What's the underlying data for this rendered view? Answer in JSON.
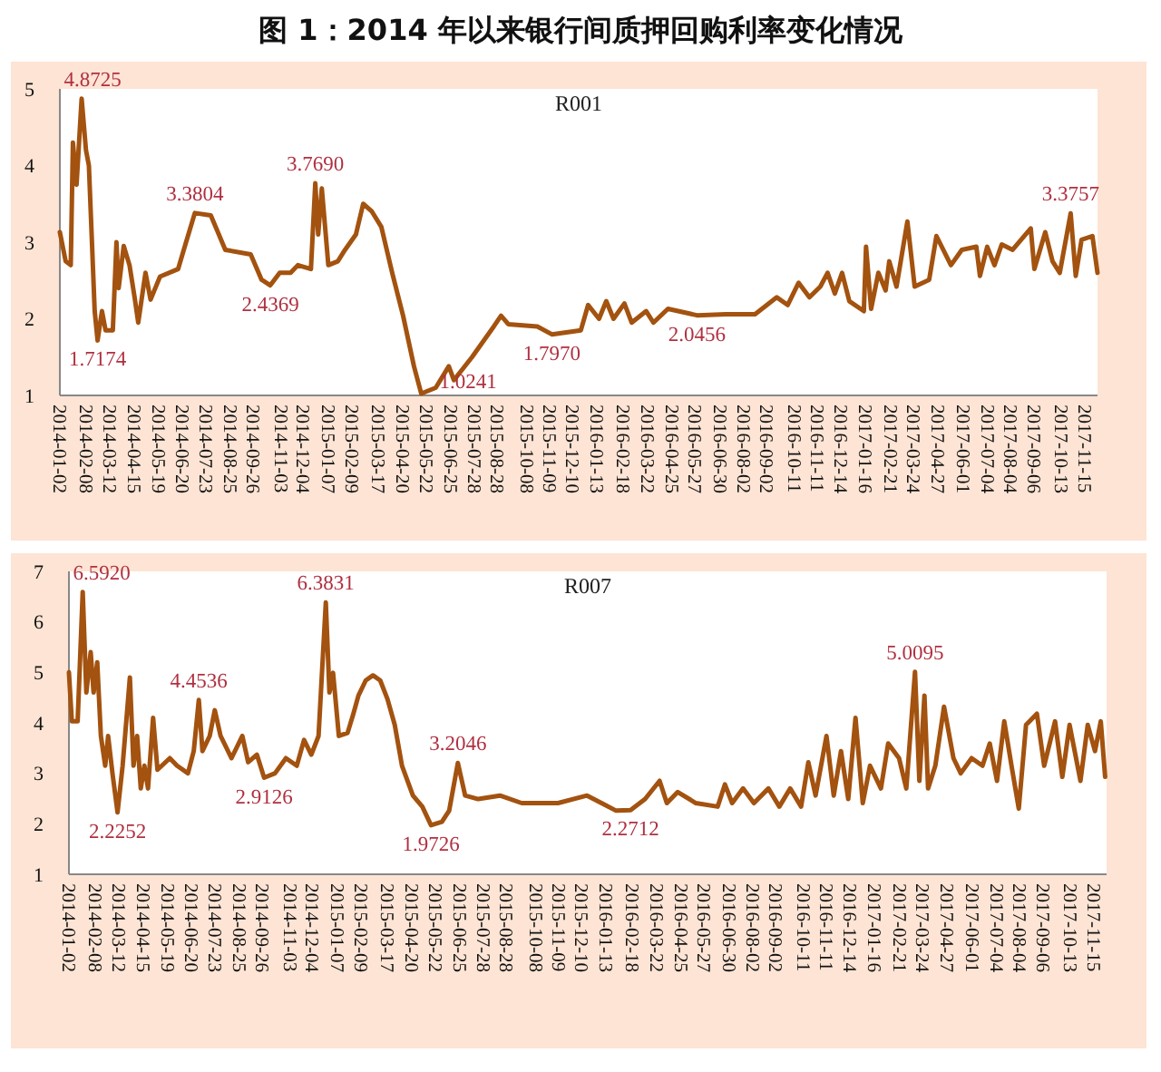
{
  "chart_data": [
    {
      "type": "line",
      "title": "图 1：2014 年以来银行间质押回购利率变化情况",
      "subtitle": "R001",
      "grid": false,
      "marker": "none",
      "line_style": "solid",
      "xlim": [
        "2014-01-02",
        "2017-12-02"
      ],
      "ylim": [
        1,
        5
      ],
      "yticks": [
        1,
        2,
        3,
        4,
        5
      ],
      "xticks": [
        "2014-01-02",
        "2014-02-08",
        "2014-03-12",
        "2014-04-15",
        "2014-05-19",
        "2014-06-20",
        "2014-07-23",
        "2014-08-25",
        "2014-09-26",
        "2014-11-03",
        "2014-12-04",
        "2015-01-07",
        "2015-02-09",
        "2015-03-17",
        "2015-04-20",
        "2015-05-22",
        "2015-06-25",
        "2015-07-28",
        "2015-08-28",
        "2015-10-08",
        "2015-11-09",
        "2015-12-10",
        "2016-01-13",
        "2016-02-18",
        "2016-03-22",
        "2016-04-25",
        "2016-05-27",
        "2016-06-30",
        "2016-08-02",
        "2016-09-02",
        "2016-10-11",
        "2016-11-11",
        "2016-12-14",
        "2017-01-16",
        "2017-02-21",
        "2017-03-24",
        "2017-04-27",
        "2017-06-01",
        "2017-07-04",
        "2017-08-04",
        "2017-09-06",
        "2017-10-13",
        "2017-11-15"
      ],
      "series": [
        {
          "color": "#a3520f",
          "x": [
            "2014-01-02",
            "2014-01-10",
            "2014-01-17",
            "2014-01-20",
            "2014-01-25",
            "2014-02-01",
            "2014-02-07",
            "2014-02-11",
            "2014-02-19",
            "2014-02-23",
            "2014-03-01",
            "2014-03-06",
            "2014-03-16",
            "2014-03-21",
            "2014-03-24",
            "2014-03-31",
            "2014-04-08",
            "2014-04-15",
            "2014-04-20",
            "2014-04-30",
            "2014-05-07",
            "2014-05-20",
            "2014-06-14",
            "2014-06-24",
            "2014-07-07",
            "2014-07-29",
            "2014-08-18",
            "2014-09-22",
            "2014-10-07",
            "2014-10-19",
            "2014-11-01",
            "2014-11-16",
            "2014-11-26",
            "2014-12-14",
            "2014-12-20",
            "2014-12-24",
            "2014-12-29",
            "2015-01-07",
            "2015-01-20",
            "2015-01-30",
            "2015-02-14",
            "2015-02-24",
            "2015-03-08",
            "2015-03-21",
            "2015-04-05",
            "2015-04-20",
            "2015-05-05",
            "2015-05-15",
            "2015-06-04",
            "2015-06-22",
            "2015-06-29",
            "2015-07-24",
            "2015-08-23",
            "2015-09-02",
            "2015-09-12",
            "2015-10-22",
            "2015-11-11",
            "2015-12-21",
            "2015-12-31",
            "2016-01-15",
            "2016-01-25",
            "2016-02-04",
            "2016-02-19",
            "2016-02-29",
            "2016-03-20",
            "2016-03-30",
            "2016-04-19",
            "2016-05-29",
            "2016-07-08",
            "2016-08-17",
            "2016-09-16",
            "2016-10-01",
            "2016-10-16",
            "2016-10-31",
            "2016-11-15",
            "2016-11-25",
            "2016-12-05",
            "2016-12-15",
            "2016-12-25",
            "2017-01-14",
            "2017-01-17",
            "2017-01-24",
            "2017-02-03",
            "2017-02-13",
            "2017-02-18",
            "2017-02-28",
            "2017-03-15",
            "2017-03-25",
            "2017-04-14",
            "2017-04-24",
            "2017-05-14",
            "2017-05-29",
            "2017-06-18",
            "2017-06-23",
            "2017-07-03",
            "2017-07-13",
            "2017-07-23",
            "2017-08-07",
            "2017-09-01",
            "2017-09-06",
            "2017-09-21",
            "2017-10-01",
            "2017-10-11",
            "2017-10-26",
            "2017-11-02",
            "2017-11-10",
            "2017-11-25",
            "2017-12-02"
          ],
          "values": [
            3.13,
            2.75,
            2.7,
            4.3,
            3.75,
            4.8725,
            4.2,
            4.0,
            2.1,
            1.7174,
            2.1,
            1.85,
            1.85,
            3.0,
            2.4,
            2.95,
            2.7,
            2.28,
            1.95,
            2.6,
            2.25,
            2.55,
            2.65,
            2.97,
            3.3804,
            3.35,
            2.9,
            2.84,
            2.51,
            2.4369,
            2.6,
            2.6,
            2.7,
            2.65,
            3.769,
            3.1,
            3.7,
            2.7,
            2.75,
            2.9,
            3.1,
            3.5,
            3.4,
            3.2,
            2.6,
            2.04,
            1.38,
            1.0241,
            1.1,
            1.38,
            1.2,
            1.5,
            1.9,
            2.04,
            1.93,
            1.9,
            1.797,
            1.85,
            2.18,
            2.0,
            2.23,
            2.0,
            2.2,
            1.95,
            2.1,
            1.95,
            2.13,
            2.0456,
            2.06,
            2.06,
            2.28,
            2.18,
            2.47,
            2.28,
            2.42,
            2.6,
            2.33,
            2.6,
            2.23,
            2.1,
            2.94,
            2.13,
            2.6,
            2.37,
            2.75,
            2.42,
            3.27,
            2.42,
            2.51,
            3.08,
            2.7,
            2.9,
            2.94,
            2.56,
            2.94,
            2.7,
            2.97,
            2.9,
            3.18,
            2.65,
            3.13,
            2.75,
            2.6,
            3.3757,
            2.56,
            3.03,
            3.08,
            2.6
          ]
        }
      ],
      "annotations": [
        {
          "text": "4.8725",
          "x": "2014-02-01",
          "y": 4.8725
        },
        {
          "text": "1.7174",
          "x": "2014-02-23",
          "y": 1.7174
        },
        {
          "text": "3.3804",
          "x": "2014-07-07",
          "y": 3.3804
        },
        {
          "text": "2.4369",
          "x": "2014-10-19",
          "y": 2.4369
        },
        {
          "text": "3.7690",
          "x": "2014-12-20",
          "y": 3.769
        },
        {
          "text": "1.0241",
          "x": "2015-05-15",
          "y": 1.0241
        },
        {
          "text": "1.7970",
          "x": "2015-11-11",
          "y": 1.797
        },
        {
          "text": "2.0456",
          "x": "2016-05-29",
          "y": 2.0456
        },
        {
          "text": "3.3757",
          "x": "2017-10-26",
          "y": 3.3757
        }
      ]
    },
    {
      "type": "line",
      "subtitle": "R007",
      "grid": false,
      "marker": "none",
      "line_style": "solid",
      "xlim": [
        "2014-01-02",
        "2017-12-02"
      ],
      "ylim": [
        1,
        7
      ],
      "yticks": [
        1,
        2,
        3,
        4,
        5,
        6,
        7
      ],
      "xticks": [
        "2014-01-02",
        "2014-02-08",
        "2014-03-12",
        "2014-04-15",
        "2014-05-19",
        "2014-06-20",
        "2014-07-23",
        "2014-08-25",
        "2014-09-26",
        "2014-11-03",
        "2014-12-04",
        "2015-01-07",
        "2015-02-09",
        "2015-03-17",
        "2015-04-20",
        "2015-05-22",
        "2015-06-25",
        "2015-07-28",
        "2015-08-28",
        "2015-10-08",
        "2015-11-09",
        "2015-12-10",
        "2016-01-13",
        "2016-02-18",
        "2016-03-22",
        "2016-04-25",
        "2016-05-27",
        "2016-06-30",
        "2016-08-02",
        "2016-09-02",
        "2016-10-11",
        "2016-11-11",
        "2016-12-14",
        "2017-01-16",
        "2017-02-21",
        "2017-03-24",
        "2017-04-27",
        "2017-06-01",
        "2017-07-04",
        "2017-08-04",
        "2017-09-06",
        "2017-10-13",
        "2017-11-15"
      ],
      "series": [
        {
          "color": "#a3520f",
          "x": [
            "2014-01-02",
            "2014-01-06",
            "2014-01-14",
            "2014-01-21",
            "2014-01-26",
            "2014-02-01",
            "2014-02-05",
            "2014-02-10",
            "2014-02-15",
            "2014-02-21",
            "2014-02-25",
            "2014-03-03",
            "2014-03-10",
            "2014-03-17",
            "2014-03-27",
            "2014-04-01",
            "2014-04-06",
            "2014-04-11",
            "2014-04-16",
            "2014-04-21",
            "2014-04-28",
            "2014-05-04",
            "2014-05-21",
            "2014-05-31",
            "2014-06-15",
            "2014-06-23",
            "2014-06-30",
            "2014-07-05",
            "2014-07-15",
            "2014-07-22",
            "2014-07-30",
            "2014-08-14",
            "2014-08-29",
            "2014-09-06",
            "2014-09-18",
            "2014-09-28",
            "2014-10-13",
            "2014-10-28",
            "2014-11-12",
            "2014-11-22",
            "2014-12-02",
            "2014-12-12",
            "2014-12-22",
            "2014-12-27",
            "2015-01-01",
            "2015-01-09",
            "2015-01-21",
            "2015-01-29",
            "2015-02-05",
            "2015-02-15",
            "2015-02-25",
            "2015-03-07",
            "2015-03-17",
            "2015-03-27",
            "2015-04-06",
            "2015-04-21",
            "2015-05-04",
            "2015-05-16",
            "2015-05-31",
            "2015-06-10",
            "2015-06-22",
            "2015-07-02",
            "2015-07-20",
            "2015-08-19",
            "2015-09-18",
            "2015-11-07",
            "2015-12-17",
            "2016-01-06",
            "2016-01-26",
            "2016-02-15",
            "2016-03-06",
            "2016-03-26",
            "2016-04-05",
            "2016-04-20",
            "2016-05-15",
            "2016-06-14",
            "2016-06-24",
            "2016-07-04",
            "2016-07-19",
            "2016-08-03",
            "2016-08-23",
            "2016-09-07",
            "2016-09-22",
            "2016-10-07",
            "2016-10-17",
            "2016-10-27",
            "2016-11-11",
            "2016-11-21",
            "2016-12-01",
            "2016-12-11",
            "2016-12-21",
            "2016-12-31",
            "2017-01-10",
            "2017-01-25",
            "2017-02-04",
            "2017-02-19",
            "2017-03-01",
            "2017-03-13",
            "2017-03-19",
            "2017-03-26",
            "2017-03-31",
            "2017-04-10",
            "2017-04-22",
            "2017-05-05",
            "2017-05-15",
            "2017-05-30",
            "2017-06-14",
            "2017-06-24",
            "2017-07-04",
            "2017-07-14",
            "2017-07-24",
            "2017-08-03",
            "2017-08-13",
            "2017-08-28",
            "2017-09-07",
            "2017-09-22",
            "2017-10-02",
            "2017-10-12",
            "2017-10-27",
            "2017-11-06",
            "2017-11-16",
            "2017-11-24",
            "2017-11-30"
          ],
          "values": [
            5.0,
            4.03,
            4.03,
            6.592,
            4.6,
            5.4,
            4.6,
            5.2,
            3.74,
            3.15,
            3.74,
            3.0,
            2.2252,
            3.15,
            4.9,
            3.15,
            3.74,
            2.7,
            3.15,
            2.7,
            4.1,
            3.07,
            3.3,
            3.15,
            3.0,
            3.44,
            4.4536,
            3.44,
            3.74,
            4.25,
            3.74,
            3.3,
            3.74,
            3.22,
            3.37,
            2.9126,
            3.0,
            3.3,
            3.15,
            3.66,
            3.37,
            3.74,
            6.3831,
            4.6,
            4.99,
            3.74,
            3.8,
            4.18,
            4.54,
            4.84,
            4.94,
            4.84,
            4.47,
            3.96,
            3.15,
            2.56,
            2.34,
            1.9726,
            2.04,
            2.26,
            3.2046,
            2.56,
            2.49,
            2.56,
            2.41,
            2.41,
            2.56,
            2.41,
            2.26,
            2.2712,
            2.49,
            2.85,
            2.41,
            2.63,
            2.41,
            2.34,
            2.78,
            2.41,
            2.7,
            2.41,
            2.7,
            2.34,
            2.7,
            2.34,
            3.22,
            2.56,
            3.74,
            2.56,
            3.44,
            2.49,
            4.1,
            2.41,
            3.15,
            2.7,
            3.59,
            3.3,
            2.7,
            5.0095,
            2.85,
            4.54,
            2.7,
            3.15,
            4.32,
            3.3,
            3.0,
            3.3,
            3.15,
            3.59,
            2.85,
            4.03,
            3.15,
            2.3,
            3.96,
            4.18,
            3.15,
            4.03,
            2.93,
            3.96,
            2.85,
            3.96,
            3.44,
            4.03,
            2.93
          ]
        }
      ],
      "annotations": [
        {
          "text": "6.5920",
          "x": "2014-01-21",
          "y": 6.592
        },
        {
          "text": "2.2252",
          "x": "2014-03-10",
          "y": 2.2252
        },
        {
          "text": "4.4536",
          "x": "2014-06-30",
          "y": 4.4536
        },
        {
          "text": "2.9126",
          "x": "2014-09-28",
          "y": 2.9126
        },
        {
          "text": "6.3831",
          "x": "2014-12-22",
          "y": 6.3831
        },
        {
          "text": "1.9726",
          "x": "2015-05-16",
          "y": 1.9726
        },
        {
          "text": "3.2046",
          "x": "2015-06-22",
          "y": 3.2046
        },
        {
          "text": "2.2712",
          "x": "2016-02-15",
          "y": 2.2712
        },
        {
          "text": "5.0095",
          "x": "2017-03-13",
          "y": 5.0095
        }
      ]
    }
  ]
}
